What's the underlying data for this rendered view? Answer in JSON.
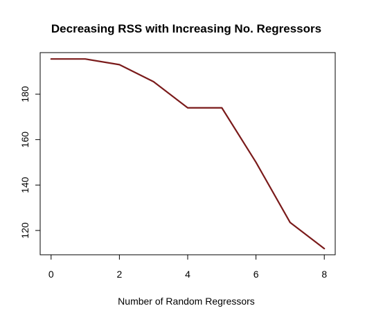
{
  "chart_data": {
    "type": "line",
    "title": "Decreasing RSS with Increasing No. Regressors",
    "xlabel": "Number of Random Regressors",
    "ylabel": "",
    "x": [
      0,
      1,
      2,
      3,
      4,
      5,
      6,
      7,
      8
    ],
    "series": [
      {
        "values": [
          195.5,
          195.5,
          193,
          185.5,
          174,
          174,
          150,
          123.5,
          112
        ]
      }
    ],
    "xlim": [
      -0.32,
      8.32
    ],
    "ylim": [
      109.3,
      198.3
    ],
    "xticks": [
      0,
      2,
      4,
      6,
      8
    ],
    "yticks": [
      120,
      140,
      160,
      180
    ],
    "grid": false,
    "legend": "none",
    "line_color": "#7a1a1a"
  }
}
